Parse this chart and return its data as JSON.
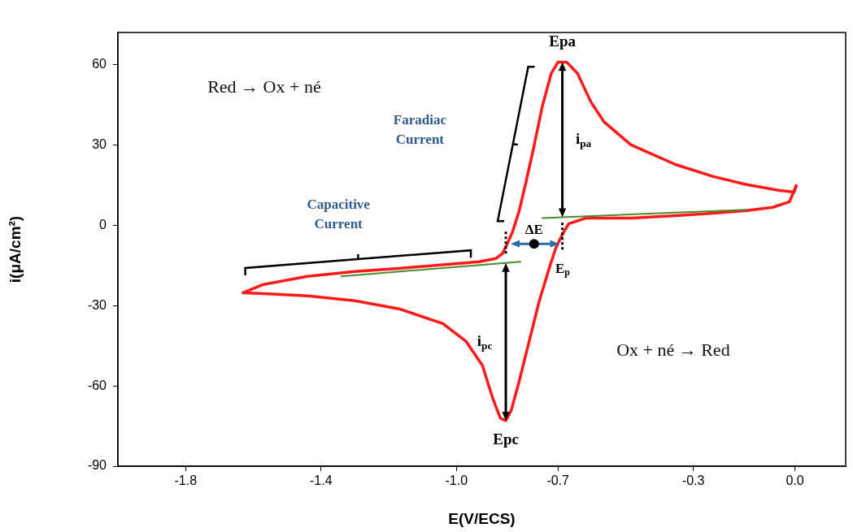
{
  "chart_data": {
    "type": "line",
    "xlabel": "E(V/ECS)",
    "ylabel": "i(μA/cm²)",
    "xlim": [
      -2.0,
      0.15
    ],
    "ylim": [
      -90,
      72
    ],
    "xticks": [
      -1.8,
      -1.4,
      {
        "value": -1.0,
        "label": "-1.0"
      },
      -0.7,
      -0.3,
      {
        "value": 0.0,
        "label": "0.0"
      }
    ],
    "yticks": [
      -90,
      -60,
      -30,
      0,
      30,
      60
    ],
    "grid": false,
    "marker": "none",
    "line_style": "solid",
    "series": [
      {
        "color": "#ff1a1a",
        "x": [
          -1.63,
          -1.57,
          -1.44,
          -1.3,
          -1.17,
          -1.04,
          -0.933,
          -0.883,
          -0.864,
          -0.85,
          -0.834,
          -0.815,
          -0.795,
          -0.771,
          -0.746,
          -0.72,
          -0.7,
          -0.674,
          -0.642,
          -0.603,
          -0.563,
          -0.484,
          -0.353,
          -0.241,
          -0.143,
          -0.045,
          -0.002,
          0.004
        ],
        "values": [
          -25.2,
          -22.1,
          -19.1,
          -17.3,
          -16.1,
          -14.8,
          -13.6,
          -12.4,
          -10.6,
          -7.0,
          -2.4,
          5.2,
          15.8,
          29.4,
          44.5,
          56.7,
          60.9,
          60.9,
          56.7,
          46.1,
          38.5,
          30.0,
          22.7,
          18.2,
          15.2,
          13.0,
          12.4,
          14.8
        ]
      },
      {
        "color": "#ff1a1a",
        "x": [
          0.004,
          -0.016,
          -0.065,
          -0.143,
          -0.241,
          -0.353,
          -0.484,
          -0.616,
          -0.668,
          -0.689,
          -0.706,
          -0.726,
          -0.755,
          -0.785,
          -0.815,
          -0.838,
          -0.854,
          -0.87,
          -0.893,
          -0.923,
          -0.972,
          -1.04,
          -1.17,
          -1.3,
          -1.44,
          -1.57,
          -1.63
        ],
        "values": [
          14.8,
          8.8,
          6.7,
          5.5,
          4.5,
          3.6,
          2.7,
          2.7,
          0.6,
          -3.9,
          -8.4,
          -16.1,
          -28.2,
          -43.3,
          -58.5,
          -69.1,
          -73.0,
          -72.1,
          -64.5,
          -52.4,
          -43.3,
          -36.7,
          -31.2,
          -28.2,
          -26.4,
          -25.5,
          -25.2
        ]
      },
      {
        "color": "#4c8a2e",
        "x": [
          -0.746,
          -0.143
        ],
        "values": [
          2.7,
          5.8
        ]
      },
      {
        "color": "#4c8a2e",
        "x": [
          -1.34,
          -0.811
        ],
        "values": [
          -19.1,
          -13.6
        ]
      }
    ],
    "annotations": [
      {
        "text": "Epa",
        "x": -0.687,
        "y": 61
      },
      {
        "text": "Epc",
        "x": -0.854,
        "y": -73
      },
      "i$_{pa}$",
      "i$_{pc}$",
      "ΔE",
      {
        "text": "E$_{p}$",
        "x": -0.811,
        "y": -13.6
      },
      "Red → Ox + né",
      "Ox + né → Red",
      "Faradiac Current",
      "Capacitive Current"
    ]
  }
}
